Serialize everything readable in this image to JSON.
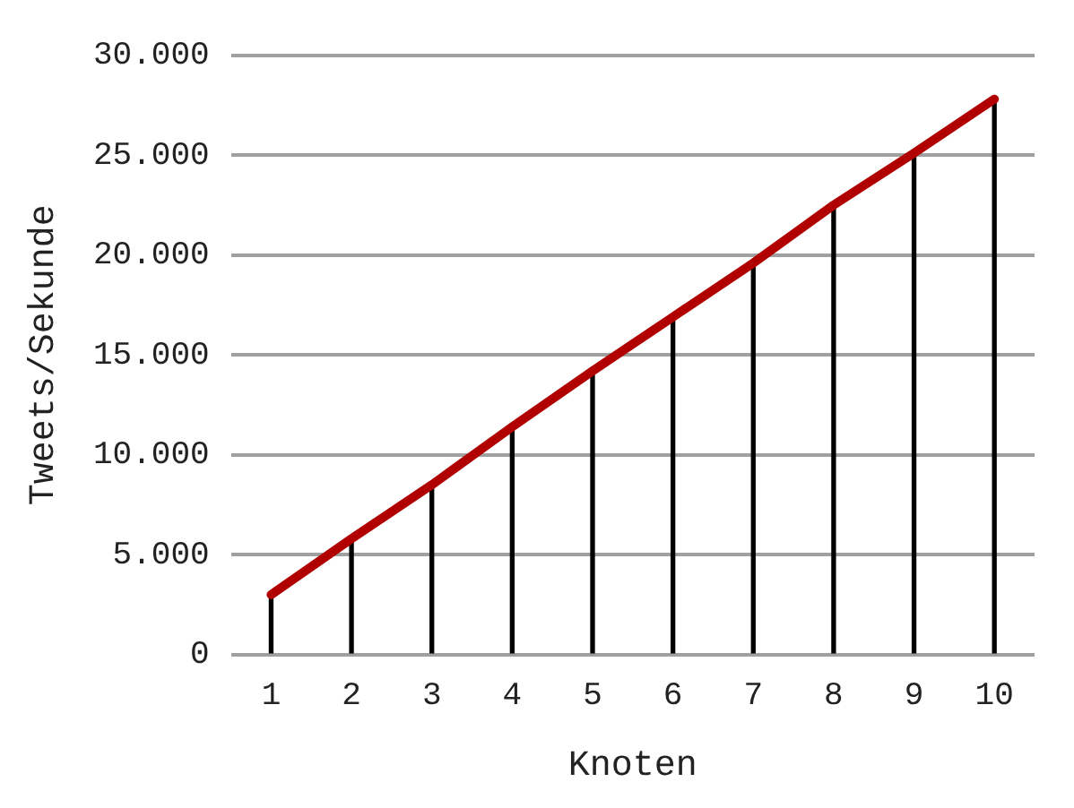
{
  "chart_data": {
    "type": "line",
    "xlabel": "Knoten",
    "ylabel": "Tweets/Sekunde",
    "categories": [
      "1",
      "2",
      "3",
      "4",
      "5",
      "6",
      "7",
      "8",
      "9",
      "10"
    ],
    "series": [
      {
        "type": "bar",
        "color": "#000000",
        "values": [
          3000,
          5800,
          8500,
          11400,
          14200,
          16900,
          19600,
          22500,
          25100,
          27800
        ]
      },
      {
        "color": "#b00000",
        "values": [
          3000,
          5800,
          8500,
          11400,
          14200,
          16900,
          19600,
          22500,
          25100,
          27800
        ]
      }
    ],
    "ylim": [
      0,
      30000
    ],
    "yticks": [
      {
        "value": 0,
        "label": "0"
      },
      {
        "value": 5000,
        "label": "5.000"
      },
      {
        "value": 10000,
        "label": "10.000"
      },
      {
        "value": 15000,
        "label": "15.000"
      },
      {
        "value": 20000,
        "label": "20.000"
      },
      {
        "value": 25000,
        "label": "25.000"
      },
      {
        "value": 30000,
        "label": "30.000"
      }
    ],
    "grid": "y",
    "legend": false,
    "marker": "none"
  }
}
